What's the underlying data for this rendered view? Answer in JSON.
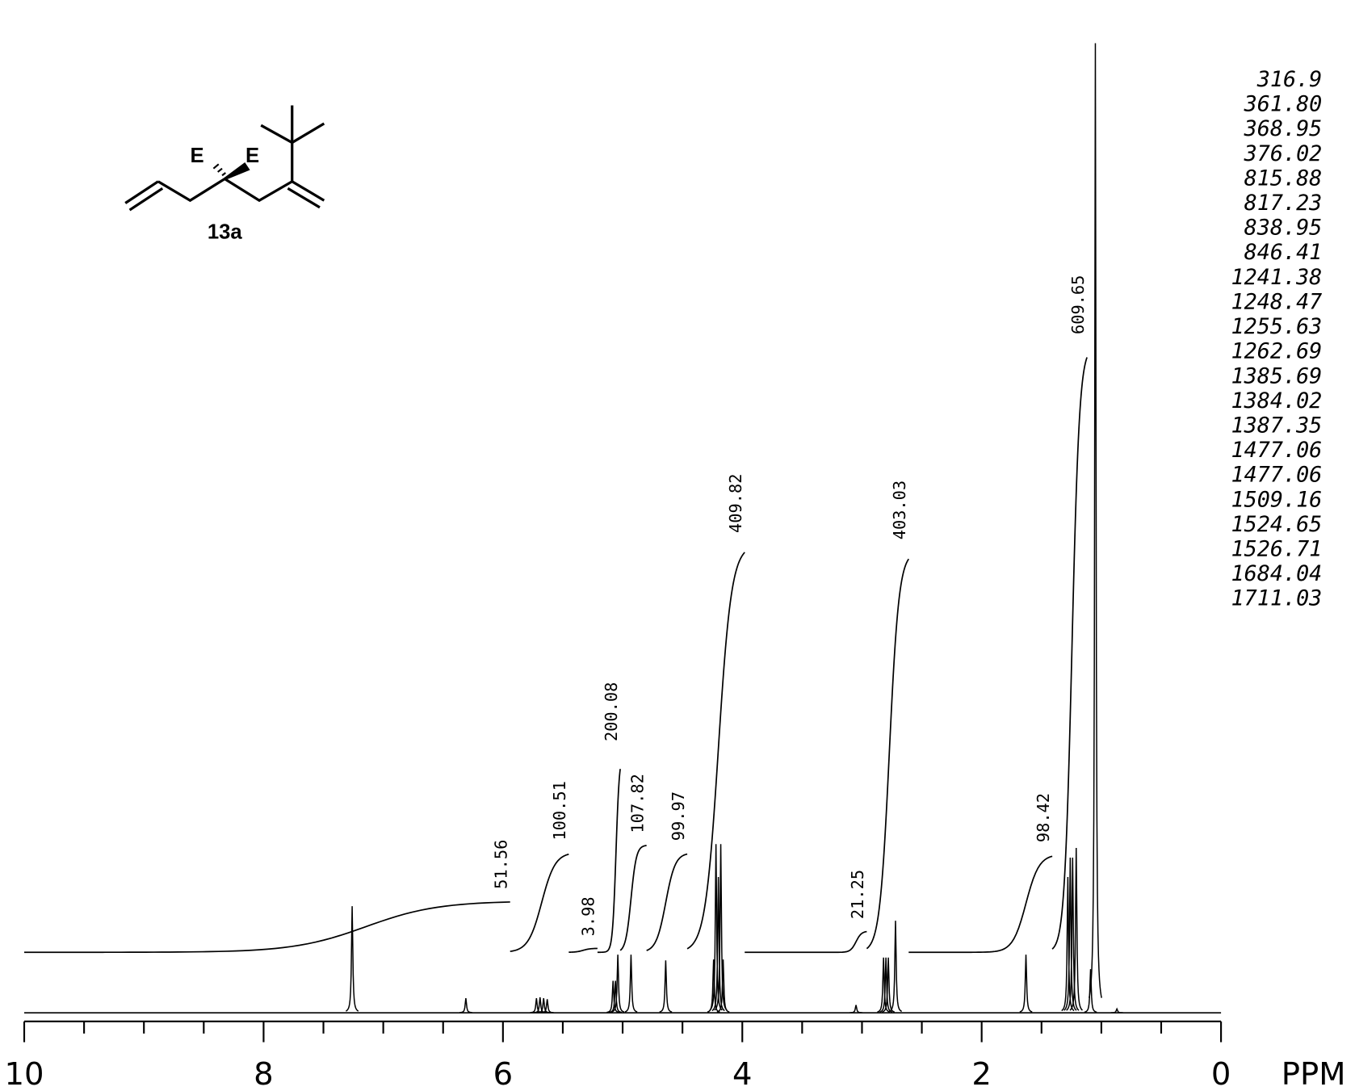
{
  "structure": {
    "substituent_labels": [
      "E",
      "E"
    ],
    "compound": "13a"
  },
  "chart_data": {
    "type": "nmr",
    "xlabel": "PPM",
    "xlim": [
      10,
      0
    ],
    "xticks": [
      10,
      8,
      6,
      4,
      2,
      0
    ],
    "xminorticks": [
      9.5,
      9,
      8.5,
      7.5,
      7,
      6.5,
      5.5,
      5,
      4.5,
      3.5,
      3,
      2.5,
      1.5,
      1,
      0.5
    ],
    "peaks": {
      "x": [
        7.26,
        6.31,
        5.72,
        5.69,
        5.66,
        5.63,
        5.08,
        5.06,
        5.04,
        4.93,
        4.64,
        4.24,
        4.22,
        4.2,
        4.18,
        4.16,
        3.05,
        2.82,
        2.8,
        2.78,
        2.72,
        1.63,
        1.28,
        1.26,
        1.24,
        1.21,
        1.09,
        1.05,
        0.87
      ],
      "values": [
        11,
        1.5,
        1.5,
        1.6,
        1.5,
        1.4,
        3.3,
        3.3,
        6,
        6,
        5.4,
        5.5,
        17.4,
        14,
        17.4,
        5.5,
        0.8,
        5.7,
        5.7,
        5.7,
        9.5,
        6,
        14,
        16,
        16,
        17,
        4.5,
        100,
        0.4
      ]
    },
    "integrals": [
      {
        "value": 51.56,
        "range": [
          10,
          5.94
        ]
      },
      {
        "value": 100.51,
        "range": [
          5.94,
          5.45
        ]
      },
      {
        "value": 3.98,
        "range": [
          5.45,
          5.21
        ]
      },
      {
        "value": 200.08,
        "range": [
          5.21,
          5.02
        ]
      },
      {
        "value": 107.82,
        "range": [
          5.02,
          4.8
        ]
      },
      {
        "value": 99.97,
        "range": [
          4.8,
          4.46
        ]
      },
      {
        "value": 409.82,
        "range": [
          4.46,
          3.98
        ]
      },
      {
        "value": 21.25,
        "range": [
          3.98,
          2.96
        ]
      },
      {
        "value": 403.03,
        "range": [
          2.96,
          2.61
        ]
      },
      {
        "value": 98.42,
        "range": [
          2.61,
          1.41
        ]
      },
      {
        "value": 609.65,
        "range": [
          1.41,
          1.12
        ]
      }
    ],
    "peak_list": [
      "316.9",
      "361.80",
      "368.95",
      "376.02",
      "815.88",
      "817.23",
      "838.95",
      "846.41",
      "1241.38",
      "1248.47",
      "1255.63",
      "1262.69",
      "1385.69",
      "1384.02",
      "1387.35",
      "1477.06",
      "1477.06",
      "1509.16",
      "1524.65",
      "1526.71",
      "1684.04",
      "1711.03"
    ]
  }
}
